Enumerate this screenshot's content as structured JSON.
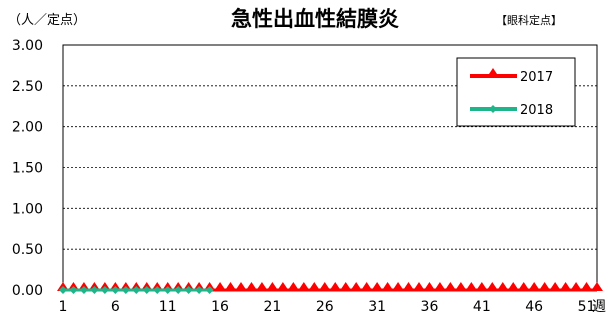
{
  "chart_data": {
    "type": "line",
    "title": "急性出血性結膜炎",
    "unit_label": "（人／定点）",
    "category_label": "【眼科定点】",
    "xlabel": "週",
    "ylabel": "",
    "ylim": [
      0,
      3
    ],
    "y_ticks": [
      "0.00",
      "0.50",
      "1.00",
      "1.50",
      "2.00",
      "2.50",
      "3.00"
    ],
    "x_range": [
      1,
      52
    ],
    "x_ticks": [
      1,
      6,
      11,
      16,
      21,
      26,
      31,
      36,
      41,
      46,
      51
    ],
    "grid": "horizontal dashed",
    "legend_position": "top-right",
    "series": [
      {
        "name": "2017",
        "color": "#ff0000",
        "marker": "triangle",
        "x": [
          1,
          2,
          3,
          4,
          5,
          6,
          7,
          8,
          9,
          10,
          11,
          12,
          13,
          14,
          15,
          16,
          17,
          18,
          19,
          20,
          21,
          22,
          23,
          24,
          25,
          26,
          27,
          28,
          29,
          30,
          31,
          32,
          33,
          34,
          35,
          36,
          37,
          38,
          39,
          40,
          41,
          42,
          43,
          44,
          45,
          46,
          47,
          48,
          49,
          50,
          51,
          52
        ],
        "values": [
          0,
          0,
          0,
          0,
          0,
          0,
          0,
          0,
          0,
          0,
          0,
          0,
          0,
          0,
          0,
          0,
          0,
          0,
          0,
          0,
          0,
          0,
          0,
          0,
          0,
          0,
          0,
          0,
          0,
          0,
          0,
          0,
          0,
          0,
          0,
          0,
          0,
          0,
          0,
          0,
          0,
          0,
          0,
          0,
          0,
          0,
          0,
          0,
          0,
          0,
          0,
          0
        ]
      },
      {
        "name": "2018",
        "color": "#1fb58a",
        "marker": "diamond",
        "x": [
          1,
          2,
          3,
          4,
          5,
          6,
          7,
          8,
          9,
          10,
          11,
          12,
          13,
          14,
          15
        ],
        "values": [
          0,
          0,
          0,
          0,
          0,
          0,
          0,
          0,
          0,
          0,
          0,
          0,
          0,
          0,
          0
        ]
      }
    ]
  }
}
